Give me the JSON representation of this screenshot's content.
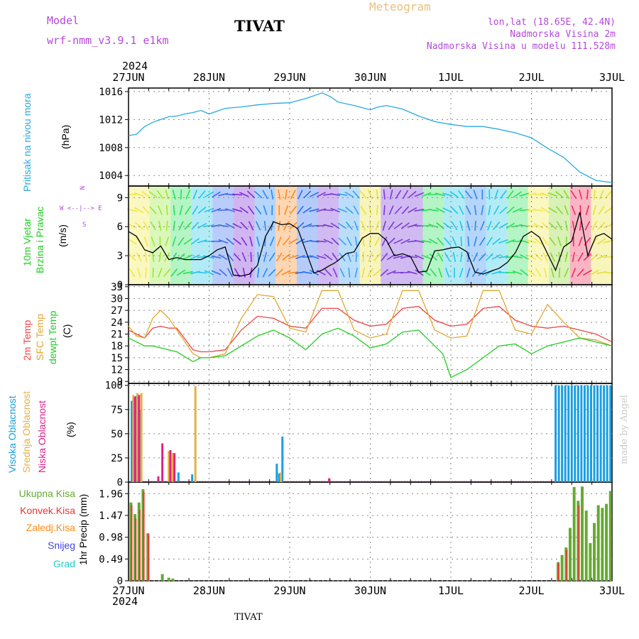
{
  "header": {
    "model_label": "Model",
    "model_name": "wrf-nmm_v3.9.1 e1km",
    "station": "TIVAT",
    "chart_kind": "Meteogram",
    "lonlat": "lon,lat (18.65E, 42.4N)",
    "altitude": "Nadmorska Visina 2m",
    "model_altitude": "Nadmorska Visina u modelu 111.528m",
    "top_year": "2024",
    "bottom_year": "2024",
    "footer_station": "TIVAT",
    "credit": "made by Angel"
  },
  "colors": {
    "pressure": "#29a9e0",
    "t2m": "#ee4444",
    "tsfc": "#e0a830",
    "dewpt": "#22cc22",
    "high_cloud": "#1a9ee0",
    "mid_cloud": "#e6b040",
    "low_cloud": "#e0208a",
    "total_rain": "#66aa33",
    "conv_rain": "#ee3333",
    "frozen": "#ff8c1a",
    "snow": "#4444dd",
    "hail": "#22cccc",
    "wind_speed": "#000000"
  },
  "panel_labels": {
    "pressure": [
      "Pritisak na nivou mora"
    ],
    "pressure_unit": "(hPa)",
    "wind": [
      "10m Vjetar",
      "Brzina i Pravac"
    ],
    "wind_unit": "(m/s)",
    "wind_compass": [
      "N",
      "W <--|--> E",
      "S"
    ],
    "temp": [
      "2m Temp",
      "SFC Temp",
      "dewpt Temp"
    ],
    "temp_unit": "(C)",
    "cloud": [
      "Visoka Oblacnost",
      "Srednja Oblacnost",
      "Niska Oblacnost"
    ],
    "cloud_unit": "(%)",
    "precip": [
      "Ukupna Kisa",
      "Konvek.Kisa",
      "Zaledj.Kisa",
      "Snijeg",
      "Grad"
    ],
    "precip_unit": "1hr Precip (mm)"
  },
  "chart_data": {
    "type": "line",
    "x_categories": [
      "27JUN",
      "28JUN",
      "29JUN",
      "30JUN",
      "1JUL",
      "2JUL",
      "3JUL"
    ],
    "grid": true,
    "panels": [
      {
        "name": "pressure",
        "type": "line",
        "unit": "hPa",
        "yticks": [
          1004,
          1008,
          1012,
          1016
        ],
        "ylim": [
          1002.5,
          1016.5
        ],
        "series": [
          {
            "name": "Pritisak na nivou mora",
            "x": [
              0,
              0.1,
              0.2,
              0.3,
              0.4,
              0.5,
              0.6,
              0.7,
              0.8,
              0.9,
              1.0,
              1.2,
              1.4,
              1.6,
              1.8,
              2.0,
              2.2,
              2.4,
              2.5,
              2.6,
              2.8,
              3.0,
              3.1,
              3.2,
              3.4,
              3.6,
              3.8,
              4.0,
              4.2,
              4.4,
              4.6,
              4.8,
              5.0,
              5.2,
              5.4,
              5.6,
              5.8,
              6.0
            ],
            "values": [
              1009.7,
              1009.9,
              1011.0,
              1011.6,
              1012.0,
              1012.4,
              1012.5,
              1012.8,
              1013.0,
              1013.3,
              1012.8,
              1013.6,
              1013.8,
              1014.1,
              1014.3,
              1014.4,
              1015.0,
              1015.8,
              1015.3,
              1014.5,
              1014.0,
              1013.4,
              1013.8,
              1014.0,
              1013.5,
              1012.5,
              1011.7,
              1011.3,
              1011.0,
              1011.0,
              1010.6,
              1010.1,
              1009.4,
              1007.9,
              1006.6,
              1004.5,
              1003.3,
              1003.0
            ]
          }
        ]
      },
      {
        "name": "wind",
        "type": "line",
        "unit": "m/s",
        "yticks": [
          0,
          3,
          6,
          9
        ],
        "ylim": [
          0,
          10.2
        ],
        "series": [
          {
            "name": "wind speed",
            "x": [
              0,
              0.1,
              0.2,
              0.3,
              0.4,
              0.5,
              0.6,
              0.7,
              0.9,
              1.0,
              1.1,
              1.2,
              1.3,
              1.4,
              1.5,
              1.6,
              1.7,
              1.8,
              1.9,
              2.0,
              2.1,
              2.2,
              2.3,
              2.4,
              2.5,
              2.55,
              2.6,
              2.7,
              2.8,
              2.9,
              3.0,
              3.1,
              3.2,
              3.3,
              3.4,
              3.5,
              3.6,
              3.7,
              3.8,
              3.9,
              4.0,
              4.1,
              4.2,
              4.3,
              4.4,
              4.5,
              4.6,
              4.7,
              4.8,
              4.9,
              5.0,
              5.1,
              5.2,
              5.3,
              5.4,
              5.5,
              5.6,
              5.7,
              5.8,
              5.9,
              6.0
            ],
            "values": [
              5.5,
              5.0,
              3.6,
              3.3,
              4.0,
              2.6,
              2.8,
              2.6,
              2.6,
              3.0,
              3.6,
              3.9,
              1.0,
              0.9,
              1.1,
              2.0,
              5.0,
              6.5,
              6.2,
              6.3,
              5.8,
              3.5,
              1.2,
              1.5,
              2.0,
              2.2,
              2.5,
              3.2,
              3.4,
              4.8,
              5.3,
              5.3,
              4.6,
              3.0,
              3.2,
              2.9,
              1.3,
              1.4,
              3.5,
              3.6,
              3.8,
              3.9,
              3.4,
              1.3,
              1.1,
              1.4,
              1.7,
              2.3,
              3.3,
              5.0,
              5.5,
              4.9,
              3.2,
              1.5,
              3.9,
              4.5,
              7.5,
              3.0,
              5.0,
              5.3,
              4.7
            ]
          }
        ],
        "arrow_bands": [
          "#f0e84a",
          "#9ae83a",
          "#2adf5a",
          "#22c6e6",
          "#3a6cf0",
          "#7a2bd6",
          "#2a88f0",
          "#ff8a22",
          "#2a6cf2",
          "#7a3ad8",
          "#3aa0f0",
          "#e8e040",
          "#7a3ad8",
          "#7a3ad8",
          "#2adf5a",
          "#22c6e6",
          "#2a88f0",
          "#22c6e6",
          "#2adf5a",
          "#f0e84a",
          "#8cd830",
          "#f02a5a",
          "#e8e040"
        ]
      },
      {
        "name": "temperature",
        "type": "line",
        "unit": "C",
        "yticks": [
          9,
          12,
          15,
          18,
          21,
          24,
          27,
          30,
          33
        ],
        "ylim": [
          8.5,
          33.5
        ],
        "series": [
          {
            "name": "2m Temp",
            "x": [
              0,
              0.1,
              0.2,
              0.3,
              0.4,
              0.5,
              0.6,
              0.8,
              0.9,
              1.0,
              1.2,
              1.4,
              1.6,
              1.8,
              2.0,
              2.2,
              2.4,
              2.6,
              2.8,
              3.0,
              3.2,
              3.4,
              3.6,
              3.8,
              4.0,
              4.2,
              4.4,
              4.6,
              4.8,
              5.0,
              5.2,
              5.4,
              5.6,
              5.8,
              6.0
            ],
            "values": [
              22,
              21,
              20,
              22.5,
              23,
              22.5,
              22.5,
              17,
              16.5,
              16.5,
              17,
              22,
              25.5,
              25,
              23,
              22.5,
              27.5,
              27.5,
              24.5,
              23,
              23.5,
              27.5,
              28,
              24.5,
              23,
              23.5,
              27.5,
              28,
              24.5,
              23,
              22.5,
              23,
              22,
              21,
              19
            ]
          },
          {
            "name": "SFC Temp",
            "x": [
              0,
              0.1,
              0.2,
              0.3,
              0.4,
              0.5,
              0.6,
              0.8,
              0.9,
              1.0,
              1.2,
              1.4,
              1.6,
              1.8,
              2.0,
              2.2,
              2.4,
              2.6,
              2.8,
              3.0,
              3.2,
              3.4,
              3.6,
              3.8,
              4.0,
              4.2,
              4.4,
              4.6,
              4.8,
              5.0,
              5.2,
              5.4,
              5.6,
              5.8,
              6.0
            ],
            "values": [
              23,
              20.5,
              20,
              25,
              27,
              25,
              22,
              16,
              15,
              15,
              16,
              25,
              31,
              30.5,
              22.5,
              21.5,
              32,
              32,
              22,
              20,
              21,
              32,
              32,
              22,
              20,
              20.5,
              32,
              32,
              22,
              21,
              28.5,
              24,
              20,
              19.5,
              18
            ]
          },
          {
            "name": "dewpt Temp",
            "x": [
              0,
              0.1,
              0.2,
              0.3,
              0.4,
              0.5,
              0.6,
              0.8,
              0.9,
              1.0,
              1.2,
              1.4,
              1.6,
              1.8,
              2.0,
              2.2,
              2.4,
              2.6,
              2.8,
              3.0,
              3.2,
              3.4,
              3.6,
              3.8,
              3.9,
              4.0,
              4.2,
              4.4,
              4.6,
              4.8,
              5.0,
              5.2,
              5.4,
              5.6,
              5.8,
              6.0
            ],
            "values": [
              20,
              19,
              18,
              18,
              17.5,
              17,
              16.5,
              14,
              15,
              15,
              15.5,
              18,
              20.5,
              22,
              20,
              17,
              21,
              22.5,
              20.5,
              17.5,
              18.5,
              21.5,
              22,
              18,
              16,
              10,
              12,
              15,
              18,
              18.5,
              16,
              18,
              19,
              20,
              19,
              18
            ]
          }
        ]
      },
      {
        "name": "cloud",
        "type": "bar",
        "unit": "%",
        "yticks": [
          0,
          25,
          50,
          75,
          100
        ],
        "ylim": [
          0,
          102
        ],
        "series": [
          {
            "name": "Visoka Oblacnost",
            "x": [
              0.04,
              0.09,
              0.14,
              0.62,
              0.79,
              1.84,
              1.87,
              1.91
            ],
            "values": [
              84,
              89,
              75,
              10,
              8,
              19,
              9,
              47
            ]
          },
          {
            "name": "Srednja Oblacnost",
            "x": [
              0.06,
              0.11,
              0.16,
              0.5,
              0.55,
              0.83,
              1.89
            ],
            "values": [
              90,
              92,
              92,
              32,
              30,
              99,
              10
            ]
          },
          {
            "name": "Niska Oblacnost",
            "x": [
              0.08,
              0.13,
              0.37,
              0.42,
              0.52,
              0.57,
              2.49
            ],
            "values": [
              88,
              90,
              6,
              40,
              33,
              30,
              4
            ]
          },
          {
            "name": "Visoka Oblacnost (2JUL)",
            "x": [
              5.3,
              5.34,
              5.38,
              5.42,
              5.46,
              5.5,
              5.54,
              5.58,
              5.62,
              5.66,
              5.7,
              5.74,
              5.78,
              5.82,
              5.86,
              5.9,
              5.94,
              5.98
            ],
            "values": [
              100,
              100,
              100,
              100,
              100,
              100,
              100,
              100,
              100,
              100,
              100,
              100,
              100,
              100,
              100,
              100,
              100,
              100
            ]
          }
        ]
      },
      {
        "name": "precipitation",
        "type": "bar",
        "unit": "mm",
        "yticks": [
          0,
          0.49,
          0.98,
          1.47,
          1.96
        ],
        "ylim": [
          0,
          2.22
        ],
        "series": [
          {
            "name": "Ukupna Kisa",
            "x": [
              0.03,
              0.08,
              0.13,
              0.18,
              0.24,
              0.42,
              0.5,
              0.55,
              5.33,
              5.38,
              5.43,
              5.48,
              5.53,
              5.58,
              5.63,
              5.68,
              5.73,
              5.78,
              5.83,
              5.88,
              5.93,
              5.98
            ],
            "values": [
              1.76,
              1.5,
              1.76,
              2.06,
              1.07,
              0.15,
              0.07,
              0.05,
              0.42,
              0.58,
              0.75,
              1.19,
              2.11,
              1.8,
              2.12,
              1.58,
              0.85,
              1.3,
              1.7,
              1.64,
              1.73,
              2.02
            ]
          },
          {
            "name": "Konvek.Kisa",
            "x": [
              0.04,
              0.09,
              0.14,
              0.19,
              0.25,
              5.34,
              5.44,
              5.59
            ],
            "values": [
              1.7,
              1.4,
              1.6,
              2.0,
              1.05,
              0.4,
              0.7,
              1.7
            ]
          }
        ]
      }
    ]
  }
}
